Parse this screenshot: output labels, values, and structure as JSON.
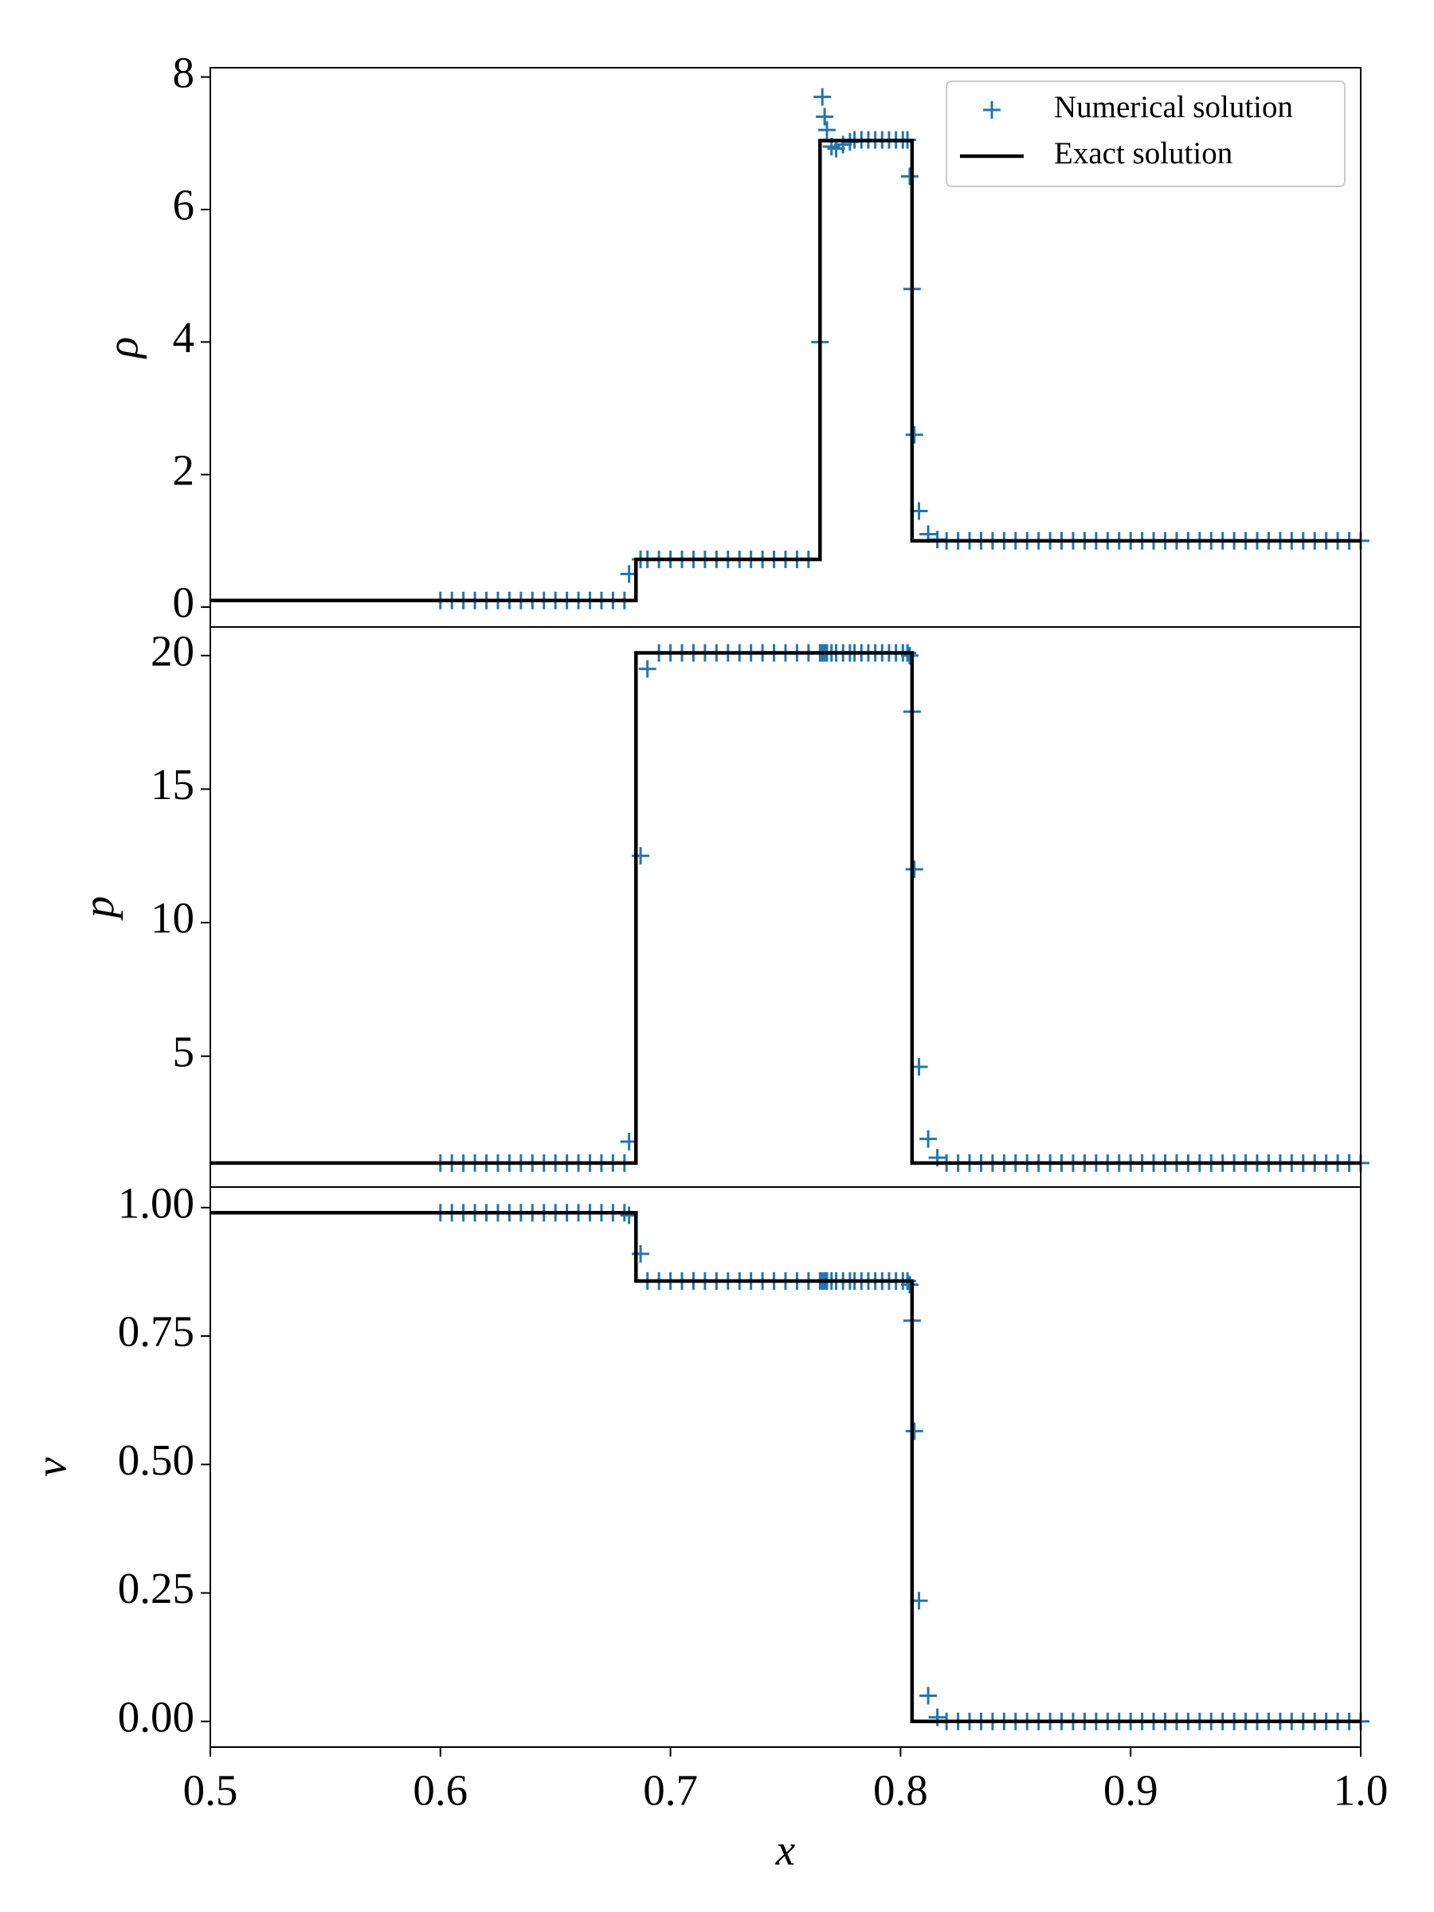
{
  "chart_data": [
    {
      "type": "line",
      "ylabel": "ρ",
      "xlim": [
        0.5,
        1.0
      ],
      "ylim": [
        -0.3,
        8.14
      ],
      "yticks": [
        0,
        2,
        4,
        6,
        8
      ],
      "legend": "upper right",
      "series": [
        {
          "name": "Numerical solution",
          "color": "#1f77b4",
          "marker": "+",
          "x": [
            0.6,
            0.605,
            0.61,
            0.615,
            0.62,
            0.625,
            0.63,
            0.635,
            0.64,
            0.645,
            0.65,
            0.655,
            0.66,
            0.665,
            0.67,
            0.675,
            0.68,
            0.682,
            0.687,
            0.69,
            0.695,
            0.7,
            0.705,
            0.71,
            0.715,
            0.72,
            0.725,
            0.73,
            0.735,
            0.74,
            0.745,
            0.75,
            0.755,
            0.76,
            0.765,
            0.766,
            0.767,
            0.768,
            0.77,
            0.772,
            0.775,
            0.778,
            0.78,
            0.783,
            0.786,
            0.789,
            0.792,
            0.795,
            0.798,
            0.801,
            0.803,
            0.804,
            0.805,
            0.806,
            0.808,
            0.812,
            0.816,
            0.82,
            0.825,
            0.83,
            0.835,
            0.84,
            0.845,
            0.85,
            0.855,
            0.86,
            0.865,
            0.87,
            0.875,
            0.88,
            0.885,
            0.89,
            0.895,
            0.9,
            0.905,
            0.91,
            0.915,
            0.92,
            0.925,
            0.93,
            0.935,
            0.94,
            0.945,
            0.95,
            0.955,
            0.96,
            0.965,
            0.97,
            0.975,
            0.98,
            0.985,
            0.99,
            0.995,
            1.0
          ],
          "values": [
            0.1,
            0.1,
            0.1,
            0.1,
            0.1,
            0.1,
            0.1,
            0.1,
            0.1,
            0.1,
            0.1,
            0.1,
            0.1,
            0.1,
            0.1,
            0.1,
            0.1,
            0.5,
            0.72,
            0.72,
            0.72,
            0.72,
            0.72,
            0.72,
            0.72,
            0.72,
            0.72,
            0.72,
            0.72,
            0.72,
            0.72,
            0.72,
            0.72,
            0.72,
            4.0,
            7.7,
            7.4,
            7.2,
            6.95,
            6.92,
            6.98,
            7.02,
            7.05,
            7.05,
            7.05,
            7.05,
            7.05,
            7.05,
            7.05,
            7.05,
            7.05,
            6.5,
            4.8,
            2.6,
            1.45,
            1.1,
            1.02,
            1,
            1,
            1,
            1,
            1,
            1,
            1,
            1,
            1,
            1,
            1,
            1,
            1,
            1,
            1,
            1,
            1,
            1,
            1,
            1,
            1,
            1,
            1,
            1,
            1,
            1,
            1,
            1,
            1,
            1,
            1,
            1,
            1,
            1,
            1,
            1,
            1
          ]
        },
        {
          "name": "Exact solution",
          "color": "#000000",
          "x": [
            0.5,
            0.685,
            0.685,
            0.765,
            0.765,
            0.805,
            0.805,
            1.0
          ],
          "values": [
            0.1,
            0.1,
            0.72,
            0.72,
            7.04,
            7.04,
            1.0,
            1.0
          ]
        }
      ]
    },
    {
      "type": "line",
      "ylabel": "p",
      "xlim": [
        0.5,
        1.0
      ],
      "ylim": [
        0.1,
        21.07
      ],
      "yticks": [
        5,
        10,
        15,
        20
      ],
      "series": [
        {
          "color": "#1f77b4",
          "marker": "+",
          "x": [
            0.6,
            0.605,
            0.61,
            0.615,
            0.62,
            0.625,
            0.63,
            0.635,
            0.64,
            0.645,
            0.65,
            0.655,
            0.66,
            0.665,
            0.67,
            0.675,
            0.68,
            0.682,
            0.687,
            0.69,
            0.695,
            0.7,
            0.705,
            0.71,
            0.715,
            0.72,
            0.725,
            0.73,
            0.735,
            0.74,
            0.745,
            0.75,
            0.755,
            0.76,
            0.765,
            0.766,
            0.767,
            0.768,
            0.77,
            0.772,
            0.775,
            0.778,
            0.78,
            0.783,
            0.786,
            0.789,
            0.792,
            0.795,
            0.798,
            0.801,
            0.803,
            0.804,
            0.805,
            0.806,
            0.808,
            0.812,
            0.816,
            0.82,
            0.825,
            0.83,
            0.835,
            0.84,
            0.845,
            0.85,
            0.855,
            0.86,
            0.865,
            0.87,
            0.875,
            0.88,
            0.885,
            0.89,
            0.895,
            0.9,
            0.905,
            0.91,
            0.915,
            0.92,
            0.925,
            0.93,
            0.935,
            0.94,
            0.945,
            0.95,
            0.955,
            0.96,
            0.965,
            0.97,
            0.975,
            0.98,
            0.985,
            0.99,
            0.995,
            1.0
          ],
          "values": [
            1,
            1,
            1,
            1,
            1,
            1,
            1,
            1,
            1,
            1,
            1,
            1,
            1,
            1,
            1,
            1,
            1,
            1.8,
            12.5,
            19.5,
            20.1,
            20.1,
            20.1,
            20.1,
            20.1,
            20.1,
            20.1,
            20.1,
            20.1,
            20.1,
            20.1,
            20.1,
            20.1,
            20.1,
            20.1,
            20.1,
            20.1,
            20.1,
            20.1,
            20.1,
            20.1,
            20.1,
            20.1,
            20.1,
            20.1,
            20.1,
            20.1,
            20.1,
            20.1,
            20.1,
            20.1,
            20.0,
            17.9,
            12.0,
            4.6,
            1.9,
            1.2,
            1,
            1,
            1,
            1,
            1,
            1,
            1,
            1,
            1,
            1,
            1,
            1,
            1,
            1,
            1,
            1,
            1,
            1,
            1,
            1,
            1,
            1,
            1,
            1,
            1,
            1,
            1,
            1,
            1,
            1,
            1,
            1,
            1,
            1,
            1,
            1,
            1
          ]
        },
        {
          "color": "#000000",
          "x": [
            0.5,
            0.685,
            0.685,
            0.805,
            0.805,
            1.0
          ],
          "values": [
            1,
            1,
            20.1,
            20.1,
            1,
            1
          ]
        }
      ]
    },
    {
      "type": "line",
      "ylabel": "v",
      "xlabel": "x",
      "xlim": [
        0.5,
        1.0
      ],
      "ylim": [
        -0.05,
        1.04
      ],
      "xticks": [
        0.5,
        0.6,
        0.7,
        0.8,
        0.9,
        {
          "value": 1.0,
          "label": "1.0"
        }
      ],
      "yticks": [
        {
          "value": 0,
          "label": "0.00"
        },
        {
          "value": 0.25,
          "label": "0.25"
        },
        {
          "value": 0.5,
          "label": "0.50"
        },
        {
          "value": 0.75,
          "label": "0.75"
        },
        {
          "value": 1.0,
          "label": "1.00"
        }
      ],
      "series": [
        {
          "color": "#1f77b4",
          "marker": "+",
          "x": [
            0.6,
            0.605,
            0.61,
            0.615,
            0.62,
            0.625,
            0.63,
            0.635,
            0.64,
            0.645,
            0.65,
            0.655,
            0.66,
            0.665,
            0.67,
            0.675,
            0.68,
            0.682,
            0.687,
            0.69,
            0.695,
            0.7,
            0.705,
            0.71,
            0.715,
            0.72,
            0.725,
            0.73,
            0.735,
            0.74,
            0.745,
            0.75,
            0.755,
            0.76,
            0.765,
            0.766,
            0.767,
            0.768,
            0.77,
            0.772,
            0.775,
            0.778,
            0.78,
            0.783,
            0.786,
            0.789,
            0.792,
            0.795,
            0.798,
            0.801,
            0.803,
            0.804,
            0.805,
            0.806,
            0.808,
            0.812,
            0.816,
            0.82,
            0.825,
            0.83,
            0.835,
            0.84,
            0.845,
            0.85,
            0.855,
            0.86,
            0.865,
            0.87,
            0.875,
            0.88,
            0.885,
            0.89,
            0.895,
            0.9,
            0.905,
            0.91,
            0.915,
            0.92,
            0.925,
            0.93,
            0.935,
            0.94,
            0.945,
            0.95,
            0.955,
            0.96,
            0.965,
            0.97,
            0.975,
            0.98,
            0.985,
            0.99,
            0.995,
            1.0
          ],
          "values": [
            0.99,
            0.99,
            0.99,
            0.99,
            0.99,
            0.99,
            0.99,
            0.99,
            0.99,
            0.99,
            0.99,
            0.99,
            0.99,
            0.99,
            0.99,
            0.99,
            0.99,
            0.985,
            0.91,
            0.857,
            0.857,
            0.857,
            0.857,
            0.857,
            0.857,
            0.857,
            0.857,
            0.857,
            0.857,
            0.857,
            0.857,
            0.857,
            0.857,
            0.857,
            0.857,
            0.857,
            0.857,
            0.857,
            0.857,
            0.857,
            0.857,
            0.857,
            0.857,
            0.857,
            0.857,
            0.857,
            0.857,
            0.857,
            0.857,
            0.857,
            0.857,
            0.85,
            0.78,
            0.565,
            0.235,
            0.05,
            0.008,
            0,
            0,
            0,
            0,
            0,
            0,
            0,
            0,
            0,
            0,
            0,
            0,
            0,
            0,
            0,
            0,
            0,
            0,
            0,
            0,
            0,
            0,
            0,
            0,
            0,
            0,
            0,
            0,
            0,
            0,
            0,
            0,
            0,
            0,
            0,
            0,
            0
          ]
        },
        {
          "color": "#000000",
          "x": [
            0.5,
            0.685,
            0.685,
            0.805,
            0.805,
            1.0
          ],
          "values": [
            0.99,
            0.99,
            0.857,
            0.857,
            0,
            0
          ]
        }
      ]
    }
  ]
}
